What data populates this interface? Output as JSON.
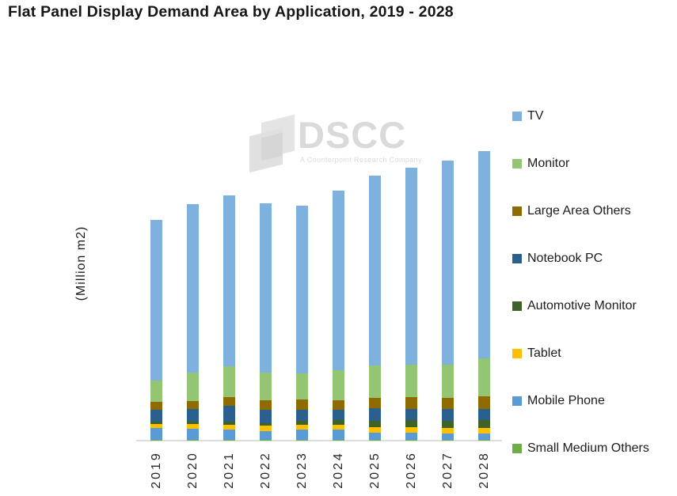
{
  "title": "Flat Panel Display Demand Area by Application, 2019 - 2028",
  "watermark": {
    "text": "DSCC",
    "tagline": "A Counterpoint Research Company"
  },
  "chart_data": {
    "type": "bar",
    "stacked": true,
    "title": "Flat Panel Display Demand Area by Application, 2019 - 2028",
    "xlabel": "",
    "ylabel": "(Million m2)",
    "legend_position": "right",
    "gridlines": false,
    "numeric_axis_labels_shown": false,
    "value_note": "values in million m2, estimated from bar heights (no numeric axis shown)",
    "axis_color": "#DCDCDC",
    "categories": [
      "2019",
      "2020",
      "2021",
      "2022",
      "2023",
      "2024",
      "2025",
      "2026",
      "2027",
      "2028"
    ],
    "series": [
      {
        "name": "Small Medium Others",
        "color": "#6FAE47",
        "values": [
          1,
          1,
          1,
          1,
          1,
          1,
          1,
          1,
          1,
          1
        ]
      },
      {
        "name": "Mobile Phone",
        "color": "#5B9BD5",
        "values": [
          12,
          11,
          10,
          9,
          10,
          10,
          7,
          7,
          6,
          6
        ]
      },
      {
        "name": "Tablet",
        "color": "#FFC000",
        "values": [
          4,
          5,
          5,
          5,
          5,
          5,
          6,
          6,
          6,
          6
        ]
      },
      {
        "name": "Automotive Monitor",
        "color": "#3F6228",
        "values": [
          2,
          2,
          3,
          3,
          4,
          5,
          6,
          7,
          7,
          8
        ]
      },
      {
        "name": "Notebook PC",
        "color": "#2B5F8E",
        "values": [
          12,
          13,
          16,
          13,
          11,
          10,
          13,
          11,
          12,
          11
        ]
      },
      {
        "name": "Large Area Others",
        "color": "#8D6B00",
        "values": [
          8,
          8,
          9,
          10,
          11,
          10,
          10,
          12,
          11,
          13
        ]
      },
      {
        "name": "Monitor",
        "color": "#94C573",
        "values": [
          22,
          29,
          31,
          28,
          26,
          30,
          33,
          33,
          34,
          38
        ]
      },
      {
        "name": "TV",
        "color": "#7FB1DF",
        "values": [
          162,
          170,
          173,
          171,
          170,
          182,
          192,
          199,
          206,
          210
        ]
      }
    ],
    "legend_order_top_to_bottom": [
      "TV",
      "Monitor",
      "Large Area Others",
      "Notebook PC",
      "Automotive Monitor",
      "Tablet",
      "Mobile Phone",
      "Small Medium Others"
    ]
  }
}
